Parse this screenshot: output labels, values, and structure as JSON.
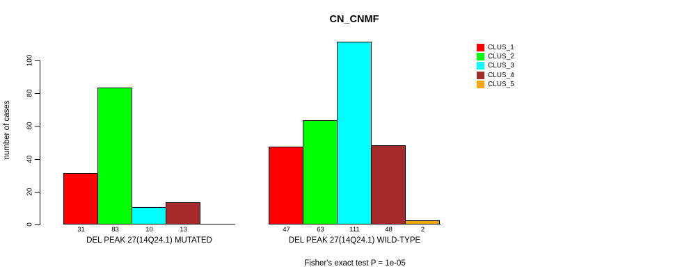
{
  "chart_data": {
    "type": "bar",
    "title": "CN_CNMF",
    "ylabel": "number of cases",
    "xlabel": "",
    "ylim": [
      0,
      111
    ],
    "yticks": [
      0,
      20,
      40,
      60,
      80,
      100
    ],
    "grid": false,
    "annotation": "Fisher's exact test P = 1e-05",
    "legend": {
      "position": "right",
      "items": [
        {
          "label": "CLUS_1",
          "color": "#ff0000"
        },
        {
          "label": "CLUS_2",
          "color": "#00ff00"
        },
        {
          "label": "CLUS_3",
          "color": "#00ffff"
        },
        {
          "label": "CLUS_4",
          "color": "#a52a2a"
        },
        {
          "label": "CLUS_5",
          "color": "#ffa500"
        }
      ]
    },
    "groups": [
      {
        "label": "DEL PEAK 27(14Q24.1) MUTATED",
        "series": [
          "CLUS_1",
          "CLUS_2",
          "CLUS_3",
          "CLUS_4",
          "CLUS_5"
        ],
        "values": [
          31,
          83,
          10,
          13,
          0
        ],
        "bar_labels": [
          "31",
          "83",
          "10",
          "13",
          ""
        ]
      },
      {
        "label": "DEL PEAK 27(14Q24.1) WILD-TYPE",
        "series": [
          "CLUS_1",
          "CLUS_2",
          "CLUS_3",
          "CLUS_4",
          "CLUS_5"
        ],
        "values": [
          47,
          63,
          111,
          48,
          2
        ],
        "bar_labels": [
          "47",
          "63",
          "111",
          "48",
          "2"
        ]
      }
    ]
  }
}
